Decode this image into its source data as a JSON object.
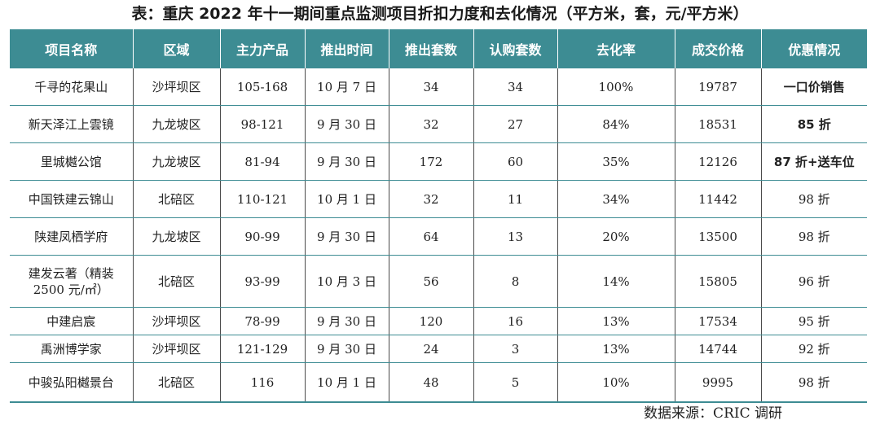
{
  "title": "表：重庆 2022 年十一期间重点监测项目折扣力度和去化情况（平方米，套，元/平方米）",
  "headers": [
    "项目名称",
    "区域",
    "主力产品",
    "推出时间",
    "推出套数",
    "认购套数",
    "去化率",
    "成交价格",
    "优惠情况"
  ],
  "rows": [
    {
      "name": "千寻的花果山",
      "district": "沙坪坝区",
      "product": "105-168",
      "launch": "10 月 7 日",
      "launched_units": "34",
      "subscribed_units": "34",
      "sell_through": "100%",
      "price": "19787",
      "discount": "一口价销售"
    },
    {
      "name": "新天泽江上雲镜",
      "district": "九龙坡区",
      "product": "98-121",
      "launch": "9 月 30 日",
      "launched_units": "32",
      "subscribed_units": "27",
      "sell_through": "84%",
      "price": "18531",
      "discount": "85 折"
    },
    {
      "name": "里城樾公馆",
      "district": "九龙坡区",
      "product": "81-94",
      "launch": "9 月 30 日",
      "launched_units": "172",
      "subscribed_units": "60",
      "sell_through": "35%",
      "price": "12126",
      "discount": "87 折+送车位"
    },
    {
      "name": "中国铁建云锦山",
      "district": "北碚区",
      "product": "110-121",
      "launch": "10 月 1 日",
      "launched_units": "32",
      "subscribed_units": "11",
      "sell_through": "34%",
      "price": "11442",
      "discount": "98 折"
    },
    {
      "name": "陕建凤栖学府",
      "district": "九龙坡区",
      "product": "90-99",
      "launch": "9 月 30 日",
      "launched_units": "64",
      "subscribed_units": "13",
      "sell_through": "20%",
      "price": "13500",
      "discount": "98 折"
    },
    {
      "name_line1": "建发云著（精装",
      "name_line2": "2500 元/㎡）",
      "district": "北碚区",
      "product": "93-99",
      "launch": "10 月 3 日",
      "launched_units": "56",
      "subscribed_units": "8",
      "sell_through": "14%",
      "price": "15805",
      "discount": "96 折"
    },
    {
      "name": "中建启宸",
      "district": "沙坪坝区",
      "product": "78-99",
      "launch": "9 月 30 日",
      "launched_units": "120",
      "subscribed_units": "16",
      "sell_through": "13%",
      "price": "17534",
      "discount": "95 折"
    },
    {
      "name": "禹洲博学家",
      "district": "沙坪坝区",
      "product": "121-129",
      "launch": "9 月 30 日",
      "launched_units": "24",
      "subscribed_units": "3",
      "sell_through": "13%",
      "price": "14744",
      "discount": "92 折"
    },
    {
      "name": "中骏弘阳樾景台",
      "district": "北碚区",
      "product": "116",
      "launch": "10 月 1 日",
      "launched_units": "48",
      "subscribed_units": "5",
      "sell_through": "10%",
      "price": "9995",
      "discount": "98 折"
    }
  ],
  "source": "数据来源：CRIC 调研"
}
